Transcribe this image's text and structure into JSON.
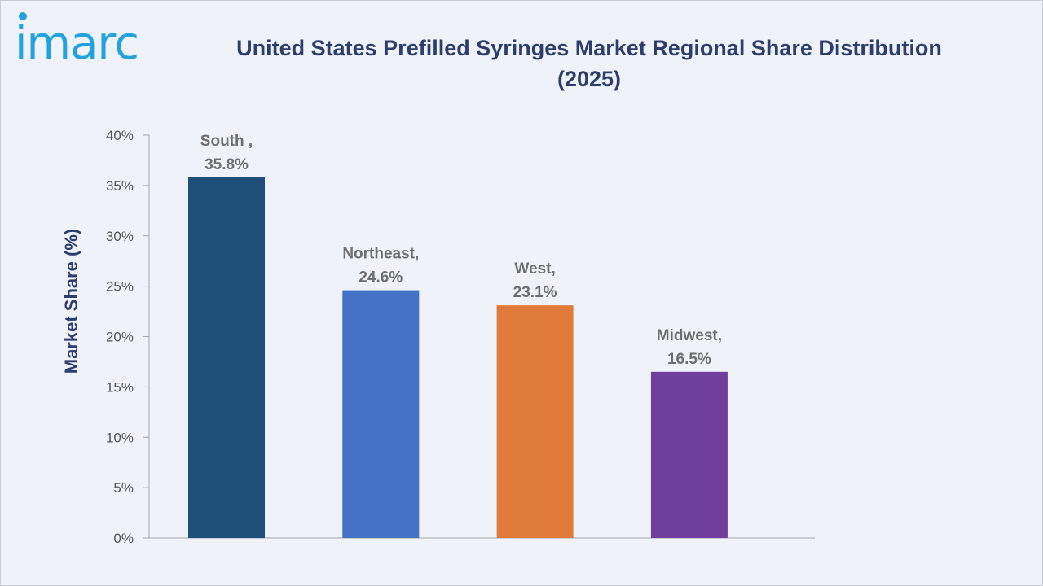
{
  "brand": {
    "logo_text": "imarc",
    "color": "#22a3dd"
  },
  "chart_data": {
    "type": "bar",
    "title": "United States Prefilled Syringes Market Regional Share Distribution (2025)",
    "ylabel": "Market Share (%)",
    "xlabel": "",
    "categories": [
      "South ,",
      "Northeast,",
      "West,",
      "Midwest,"
    ],
    "values": [
      35.8,
      24.6,
      23.1,
      16.5
    ],
    "data_labels": [
      "35.8%",
      "24.6%",
      "23.1%",
      "16.5%"
    ],
    "colors": [
      "#1f4e79",
      "#4472c4",
      "#e07b39",
      "#6f3f9e"
    ],
    "ylim": [
      0,
      40
    ],
    "yticks": [
      "0%",
      "5%",
      "10%",
      "15%",
      "20%",
      "25%",
      "30%",
      "35%",
      "40%"
    ],
    "grid": false,
    "legend": "none"
  }
}
